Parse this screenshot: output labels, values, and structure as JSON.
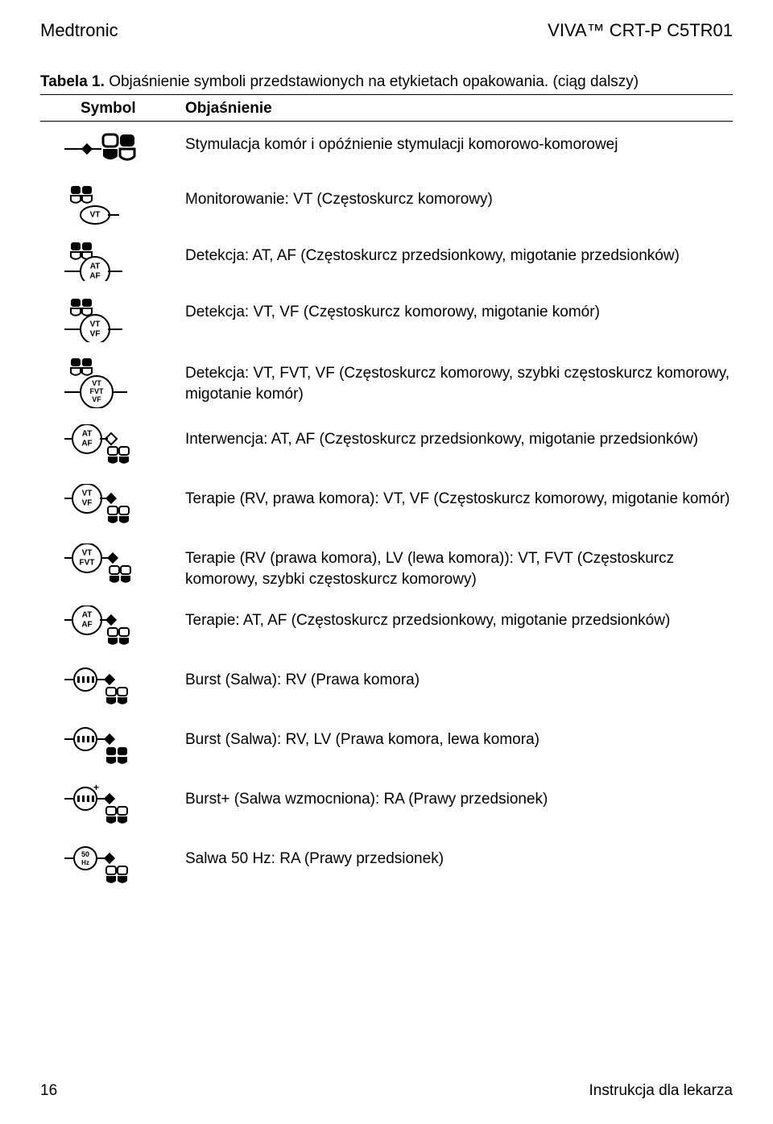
{
  "header": {
    "left": "Medtronic",
    "right": "VIVA™ CRT-P C5TR01"
  },
  "caption": {
    "label": "Tabela 1.",
    "text": "Objaśnienie symboli przedstawionych na etykietach opakowania. (ciąg dalszy)"
  },
  "columns": {
    "symbol": "Symbol",
    "desc": "Objaśnienie"
  },
  "rows": [
    {
      "icon": "stim",
      "text": "Stymulacja komór i opóźnienie stymulacji komorowo-komorowej"
    },
    {
      "icon": "mon-vt",
      "text": "Monitorowanie: VT (Częstoskurcz komorowy)"
    },
    {
      "icon": "det-ataf",
      "text": "Detekcja: AT, AF (Częstoskurcz przedsionkowy, migotanie przedsionków)"
    },
    {
      "icon": "det-vtvf",
      "text": "Detekcja: VT, VF (Częstoskurcz komorowy, migotanie komór)"
    },
    {
      "icon": "det-vtfvtvf",
      "text": "Detekcja: VT, FVT, VF (Częstoskurcz komorowy, szybki częstoskurcz komorowy, migotanie komór)"
    },
    {
      "icon": "int-ataf",
      "text": "Interwencja: AT, AF (Częstoskurcz przedsionkowy, migotanie przedsionków)"
    },
    {
      "icon": "ter-vtvf",
      "text": "Terapie (RV, prawa komora): VT, VF (Częstoskurcz komorowy, migotanie komór)"
    },
    {
      "icon": "ter-vtfvt",
      "text": "Terapie (RV (prawa komora), LV (lewa komora)): VT, FVT (Częstoskurcz komorowy, szybki częstoskurcz komorowy)"
    },
    {
      "icon": "ter-ataf",
      "text": "Terapie: AT, AF (Częstoskurcz przedsionkowy, migotanie przedsionków)"
    },
    {
      "icon": "burst-rv",
      "text": "Burst (Salwa): RV (Prawa komora)"
    },
    {
      "icon": "burst-rvlv",
      "text": "Burst (Salwa): RV, LV (Prawa komora, lewa komora)"
    },
    {
      "icon": "burstplus",
      "text": "Burst+ (Salwa wzmocniona): RA (Prawy przedsionek)"
    },
    {
      "icon": "50hz",
      "text": "Salwa 50 Hz: RA (Prawy przedsionek)"
    }
  ],
  "footer": {
    "page": "16",
    "right": "Instrukcja dla lekarza"
  },
  "style": {
    "text_color": "#000000",
    "bg_color": "#ffffff",
    "font_main": 19,
    "font_header": 22
  }
}
